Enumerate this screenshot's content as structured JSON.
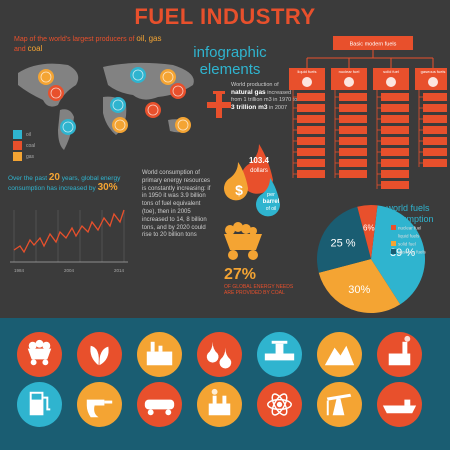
{
  "header": {
    "title": "FUEL INDUSTRY",
    "subtitle_line1": "infographic",
    "subtitle_line2": "elements"
  },
  "map": {
    "caption_prefix": "Map of the world's largest producers",
    "caption_of": "of",
    "caption_oil": "oil,",
    "caption_gas": "gas",
    "caption_and": "and",
    "caption_coal": "coal",
    "legend": [
      {
        "label": "oil",
        "color": "#2fb4cf"
      },
      {
        "label": "coal",
        "color": "#e8502c"
      },
      {
        "label": "gas",
        "color": "#f4a433"
      }
    ]
  },
  "gas_production": {
    "line1": "World production of",
    "bold1": "natural gas",
    "line2": "increased from 1 trillion m3 in 1970 to",
    "bold2": "3 trillion m3",
    "line3": "in 2007"
  },
  "tree": {
    "root": "Basic modern fuels",
    "categories": [
      "liquid fuels",
      "nuclear fuel",
      "solid fuel",
      "gaseous fuels"
    ]
  },
  "oil_price": {
    "value": "103.4",
    "unit": "dollars",
    "per": "per",
    "barrel": "barrel",
    "of_oil": "of oil",
    "currency_symbol": "$"
  },
  "history": {
    "prefix": "Over the past",
    "years": "20",
    "middle": "years, global energy consumption has increased by",
    "pct": "30%",
    "x_labels": [
      "1984",
      "2004",
      "2014"
    ]
  },
  "consumption_text": "World consumption of primary energy resources is constantly increasing: if in 1950 it was 3.9 billion tons of fuel equivalent (toe), then in 2005 increased to 14, 8 billion tons, and by 2020 could rise to 20 billion tons",
  "coal": {
    "pct": "27%",
    "text": "OF GLOBAL ENERGY NEEDS ARE PROVIDED BY COAL"
  },
  "pie": {
    "title_line1": "world fuels",
    "title_line2": "consumption",
    "slices": [
      {
        "label": "39 %",
        "value": 39,
        "color": "#2fb4cf"
      },
      {
        "label": "30%",
        "value": 30,
        "color": "#f4a433"
      },
      {
        "label": "25 %",
        "value": 25,
        "color": "#1a5d72"
      },
      {
        "label": "6%",
        "value": 6,
        "color": "#e8502c"
      }
    ],
    "legend": [
      {
        "label": "nuclear fuel",
        "color": "#e8502c"
      },
      {
        "label": "liquid fuels",
        "color": "#2fb4cf"
      },
      {
        "label": "solid fuel",
        "color": "#f4a433"
      },
      {
        "label": "gaseous fuels",
        "color": "#1a5d72"
      }
    ]
  },
  "icons": [
    {
      "name": "coal-cart-icon",
      "color": "#e8502c"
    },
    {
      "name": "leaves-icon",
      "color": "#e8502c"
    },
    {
      "name": "factory-icon",
      "color": "#f4a433"
    },
    {
      "name": "money-drops-icon",
      "color": "#e8502c"
    },
    {
      "name": "pipe-valve-icon",
      "color": "#2fb4cf"
    },
    {
      "name": "mountain-mine-icon",
      "color": "#f4a433"
    },
    {
      "name": "power-plant-icon",
      "color": "#e8502c"
    },
    {
      "name": "gas-pump-icon",
      "color": "#2fb4cf"
    },
    {
      "name": "fuel-nozzle-icon",
      "color": "#f4a433"
    },
    {
      "name": "tank-train-icon",
      "color": "#e8502c"
    },
    {
      "name": "chimney-smoke-icon",
      "color": "#f4a433"
    },
    {
      "name": "atom-icon",
      "color": "#e8502c"
    },
    {
      "name": "oil-pump-jack-icon",
      "color": "#f4a433"
    },
    {
      "name": "tanker-ship-icon",
      "color": "#e8502c"
    }
  ]
}
